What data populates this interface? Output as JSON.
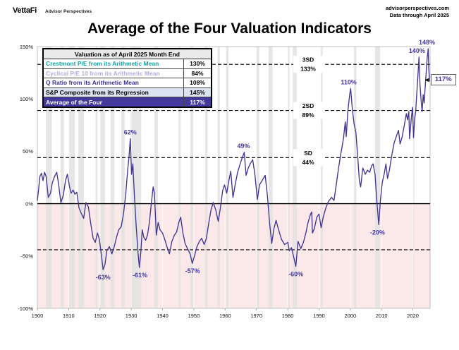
{
  "header": {
    "logo": "VettaFi",
    "logo_sub": "Advisor Perspectives",
    "source_line1": "advisorperspectives.com",
    "source_line2": "Data through April 2025"
  },
  "title": "Average of the Four Valuation Indicators",
  "valuation_table": {
    "header": "Valuation as of April 2025 Month End",
    "rows": [
      {
        "label": "Crestmont P/E from its Arithmetic Mean",
        "value": "130%",
        "color": "#17a2a2"
      },
      {
        "label": "Cyclical P/E 10 from its Arithmetic Mean",
        "value": "84%",
        "color": "#b3aadd"
      },
      {
        "label": "Q Ratio from its Arithmetic Mean",
        "value": "108%",
        "color": "#3a3193"
      },
      {
        "label": "S&P Composite from its Regression",
        "value": "145%",
        "color": "#000000"
      },
      {
        "label": "Average of the Four",
        "value": "117%",
        "color": "#ffffff"
      }
    ]
  },
  "callout": {
    "label": "117%",
    "arrow": "◄"
  },
  "chart_data": {
    "type": "line",
    "title": "Average of the Four Valuation Indicators",
    "xlabel": "",
    "ylabel": "",
    "xlim": [
      1900,
      2025.5
    ],
    "ylim": [
      -100,
      150
    ],
    "x_ticks": [
      1900,
      1910,
      1920,
      1930,
      1940,
      1950,
      1960,
      1970,
      1980,
      1990,
      2000,
      2010,
      2020
    ],
    "y_ticks": [
      150,
      100,
      50,
      0,
      -50,
      -100
    ],
    "grid": "decade vertical gridlines, dashed SD bands",
    "legend_position": "table top-left",
    "style": {
      "line_color": "#413594",
      "annotation_color": "#443a9e",
      "below_zero_fill": "#fbe9e9",
      "recession_fill": "#e4e2e2",
      "zero_line_color": "#000000",
      "dashed_line_color": "#000000",
      "plot_border_color": "#b3b3b3"
    },
    "sd_lines": [
      {
        "value": 133,
        "label": "3SD",
        "sub": "133%",
        "labeled": true
      },
      {
        "value": 89,
        "label": "2SD",
        "sub": "89%",
        "labeled": true
      },
      {
        "value": 44,
        "label": "SD",
        "sub": "44%",
        "labeled": true
      },
      {
        "value": -44,
        "label": "",
        "sub": "",
        "labeled": false
      }
    ],
    "annotations": [
      {
        "text": "62%",
        "year": 1929.7,
        "value": 62,
        "placement": "above"
      },
      {
        "text": "-63%",
        "year": 1921.0,
        "value": -63,
        "placement": "below"
      },
      {
        "text": "-61%",
        "year": 1932.8,
        "value": -61,
        "placement": "below"
      },
      {
        "text": "-57%",
        "year": 1949.6,
        "value": -57,
        "placement": "below"
      },
      {
        "text": "49%",
        "year": 1965.9,
        "value": 49,
        "placement": "above"
      },
      {
        "text": "-60%",
        "year": 1982.6,
        "value": -60,
        "placement": "below"
      },
      {
        "text": "110%",
        "year": 1999.5,
        "value": 110,
        "placement": "above"
      },
      {
        "text": "-20%",
        "year": 2008.7,
        "value": -20,
        "placement": "below"
      },
      {
        "text": "140%",
        "year": 2021.3,
        "value": 140,
        "placement": "above"
      },
      {
        "text": "148%",
        "year": 2024.5,
        "value": 148,
        "placement": "above"
      }
    ],
    "recessions": [
      [
        1902.7,
        1904.6
      ],
      [
        1907.4,
        1908.5
      ],
      [
        1910.1,
        1912.0
      ],
      [
        1913.1,
        1914.9
      ],
      [
        1918.6,
        1919.2
      ],
      [
        1920.1,
        1921.6
      ],
      [
        1923.4,
        1924.6
      ],
      [
        1926.8,
        1927.9
      ],
      [
        1929.7,
        1933.2
      ],
      [
        1937.4,
        1938.5
      ],
      [
        1945.1,
        1945.8
      ],
      [
        1948.9,
        1949.8
      ],
      [
        1953.6,
        1954.4
      ],
      [
        1957.6,
        1958.3
      ],
      [
        1960.3,
        1961.1
      ],
      [
        1969.9,
        1970.9
      ],
      [
        1973.9,
        1975.2
      ],
      [
        1980.0,
        1980.6
      ],
      [
        1981.6,
        1982.9
      ],
      [
        1990.6,
        1991.2
      ],
      [
        2001.2,
        2001.9
      ],
      [
        2007.9,
        2009.5
      ],
      [
        2020.1,
        2020.4
      ]
    ],
    "series": [
      {
        "name": "Average of the Four (% above/below mean)",
        "color": "#413594",
        "points": [
          [
            1900.0,
            3
          ],
          [
            1900.4,
            14
          ],
          [
            1900.8,
            26
          ],
          [
            1901.3,
            29
          ],
          [
            1901.8,
            22
          ],
          [
            1902.3,
            30
          ],
          [
            1902.8,
            26
          ],
          [
            1903.5,
            6
          ],
          [
            1904.2,
            10
          ],
          [
            1904.8,
            20
          ],
          [
            1905.5,
            26
          ],
          [
            1906.2,
            30
          ],
          [
            1906.8,
            18
          ],
          [
            1907.5,
            1
          ],
          [
            1908.3,
            8
          ],
          [
            1909.0,
            22
          ],
          [
            1909.6,
            28
          ],
          [
            1910.3,
            16
          ],
          [
            1910.8,
            10
          ],
          [
            1911.4,
            13
          ],
          [
            1912.0,
            9
          ],
          [
            1912.6,
            11
          ],
          [
            1913.3,
            -4
          ],
          [
            1914.0,
            -9
          ],
          [
            1914.8,
            -14
          ],
          [
            1915.5,
            1
          ],
          [
            1916.3,
            -3
          ],
          [
            1917.0,
            -18
          ],
          [
            1917.8,
            -33
          ],
          [
            1918.5,
            -37
          ],
          [
            1919.2,
            -28
          ],
          [
            1919.8,
            -34
          ],
          [
            1920.5,
            -50
          ],
          [
            1921.0,
            -63
          ],
          [
            1921.6,
            -58
          ],
          [
            1922.2,
            -45
          ],
          [
            1923.0,
            -41
          ],
          [
            1923.8,
            -48
          ],
          [
            1924.5,
            -42
          ],
          [
            1925.3,
            -32
          ],
          [
            1926.0,
            -25
          ],
          [
            1926.8,
            -22
          ],
          [
            1927.5,
            -10
          ],
          [
            1928.2,
            8
          ],
          [
            1928.8,
            30
          ],
          [
            1929.3,
            45
          ],
          [
            1929.7,
            62
          ],
          [
            1930.1,
            28
          ],
          [
            1930.5,
            38
          ],
          [
            1931.0,
            8
          ],
          [
            1931.6,
            -22
          ],
          [
            1932.2,
            -48
          ],
          [
            1932.6,
            -61
          ],
          [
            1933.1,
            -45
          ],
          [
            1933.5,
            -25
          ],
          [
            1934.0,
            -32
          ],
          [
            1934.6,
            -35
          ],
          [
            1935.2,
            -30
          ],
          [
            1935.8,
            -18
          ],
          [
            1936.4,
            0
          ],
          [
            1937.0,
            16
          ],
          [
            1937.4,
            10
          ],
          [
            1938.0,
            -30
          ],
          [
            1938.6,
            -18
          ],
          [
            1939.2,
            -25
          ],
          [
            1940.0,
            -28
          ],
          [
            1940.8,
            -35
          ],
          [
            1941.5,
            -42
          ],
          [
            1942.2,
            -48
          ],
          [
            1943.0,
            -36
          ],
          [
            1943.8,
            -30
          ],
          [
            1944.5,
            -27
          ],
          [
            1945.2,
            -18
          ],
          [
            1945.8,
            -13
          ],
          [
            1946.5,
            -28
          ],
          [
            1947.2,
            -38
          ],
          [
            1948.0,
            -43
          ],
          [
            1948.8,
            -48
          ],
          [
            1949.5,
            -57
          ],
          [
            1950.2,
            -50
          ],
          [
            1951.0,
            -41
          ],
          [
            1951.8,
            -36
          ],
          [
            1952.5,
            -33
          ],
          [
            1953.3,
            -39
          ],
          [
            1954.0,
            -33
          ],
          [
            1954.8,
            -18
          ],
          [
            1955.5,
            -6
          ],
          [
            1956.2,
            1
          ],
          [
            1957.0,
            -6
          ],
          [
            1957.8,
            -17
          ],
          [
            1958.5,
            -4
          ],
          [
            1959.2,
            12
          ],
          [
            1959.8,
            18
          ],
          [
            1960.5,
            10
          ],
          [
            1961.2,
            22
          ],
          [
            1961.8,
            31
          ],
          [
            1962.5,
            6
          ],
          [
            1963.2,
            18
          ],
          [
            1964.0,
            30
          ],
          [
            1964.8,
            38
          ],
          [
            1965.5,
            44
          ],
          [
            1966.1,
            49
          ],
          [
            1966.7,
            27
          ],
          [
            1967.4,
            34
          ],
          [
            1968.0,
            38
          ],
          [
            1968.8,
            42
          ],
          [
            1969.5,
            28
          ],
          [
            1970.3,
            4
          ],
          [
            1971.0,
            18
          ],
          [
            1971.8,
            22
          ],
          [
            1972.8,
            27
          ],
          [
            1973.5,
            8
          ],
          [
            1974.2,
            -18
          ],
          [
            1974.9,
            -38
          ],
          [
            1975.6,
            -24
          ],
          [
            1976.3,
            -16
          ],
          [
            1977.0,
            -24
          ],
          [
            1978.0,
            -34
          ],
          [
            1979.0,
            -39
          ],
          [
            1980.0,
            -37
          ],
          [
            1980.5,
            -45
          ],
          [
            1981.2,
            -42
          ],
          [
            1982.0,
            -52
          ],
          [
            1982.6,
            -60
          ],
          [
            1983.3,
            -36
          ],
          [
            1984.2,
            -43
          ],
          [
            1985.0,
            -37
          ],
          [
            1985.8,
            -28
          ],
          [
            1986.5,
            -18
          ],
          [
            1987.3,
            -10
          ],
          [
            1987.7,
            -8
          ],
          [
            1987.9,
            -28
          ],
          [
            1988.5,
            -24
          ],
          [
            1989.3,
            -13
          ],
          [
            1990.0,
            -10
          ],
          [
            1990.7,
            -23
          ],
          [
            1991.4,
            -12
          ],
          [
            1992.2,
            -4
          ],
          [
            1993.0,
            2
          ],
          [
            1994.0,
            6
          ],
          [
            1994.8,
            3
          ],
          [
            1995.5,
            18
          ],
          [
            1996.3,
            35
          ],
          [
            1997.0,
            48
          ],
          [
            1997.8,
            62
          ],
          [
            1998.4,
            78
          ],
          [
            1998.7,
            64
          ],
          [
            1999.2,
            88
          ],
          [
            1999.8,
            104
          ],
          [
            2000.1,
            110
          ],
          [
            2000.6,
            92
          ],
          [
            2001.2,
            76
          ],
          [
            2001.8,
            68
          ],
          [
            2002.3,
            48
          ],
          [
            2002.9,
            22
          ],
          [
            2003.3,
            16
          ],
          [
            2004.0,
            34
          ],
          [
            2004.8,
            28
          ],
          [
            2005.5,
            32
          ],
          [
            2006.2,
            30
          ],
          [
            2006.8,
            36
          ],
          [
            2007.3,
            38
          ],
          [
            2007.9,
            28
          ],
          [
            2008.5,
            2
          ],
          [
            2009.1,
            -20
          ],
          [
            2009.6,
            2
          ],
          [
            2010.2,
            20
          ],
          [
            2010.8,
            28
          ],
          [
            2011.4,
            38
          ],
          [
            2011.9,
            24
          ],
          [
            2012.5,
            32
          ],
          [
            2013.2,
            45
          ],
          [
            2014.0,
            58
          ],
          [
            2014.9,
            66
          ],
          [
            2015.4,
            70
          ],
          [
            2015.9,
            57
          ],
          [
            2016.5,
            63
          ],
          [
            2017.2,
            74
          ],
          [
            2017.9,
            86
          ],
          [
            2018.3,
            80
          ],
          [
            2018.7,
            88
          ],
          [
            2018.95,
            62
          ],
          [
            2019.5,
            82
          ],
          [
            2019.9,
            92
          ],
          [
            2020.2,
            63
          ],
          [
            2020.6,
            82
          ],
          [
            2020.9,
            88
          ],
          [
            2021.2,
            103
          ],
          [
            2021.6,
            122
          ],
          [
            2021.95,
            140
          ],
          [
            2022.3,
            112
          ],
          [
            2022.6,
            100
          ],
          [
            2022.95,
            88
          ],
          [
            2023.3,
            104
          ],
          [
            2023.6,
            96
          ],
          [
            2023.95,
            112
          ],
          [
            2024.3,
            128
          ],
          [
            2024.6,
            140
          ],
          [
            2024.9,
            148
          ],
          [
            2025.1,
            128
          ],
          [
            2025.33,
            117
          ]
        ]
      }
    ]
  }
}
